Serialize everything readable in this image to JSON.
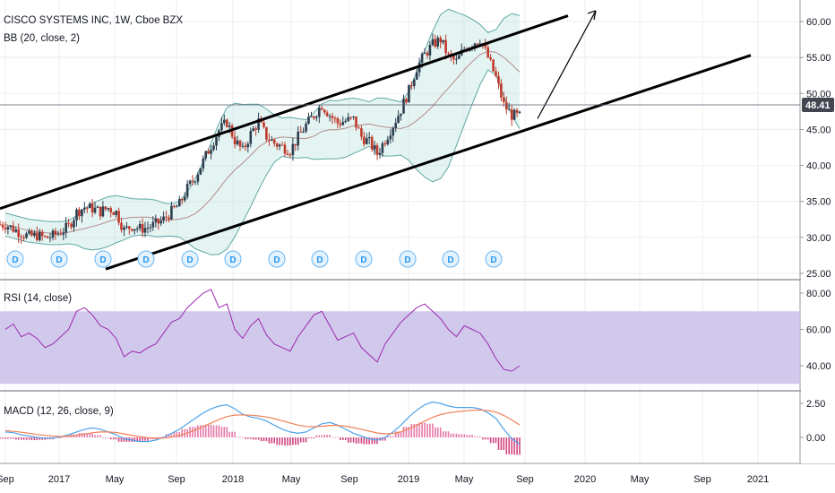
{
  "header": {
    "symbol_title": "CISCO SYSTEMS INC, 1W, Cboe BZX",
    "bb_label": "BB (20, close, 2)",
    "rsi_label": "RSI (14, close)",
    "macd_label": "MACD (12, 26, close, 9)"
  },
  "current_price": "48.41",
  "dividend_marker_text": "D",
  "chart_data": [
    {
      "type": "candlestick",
      "name": "price",
      "y_axis_ticks": [
        "60.00",
        "55.00",
        "50.00",
        "45.00",
        "40.00",
        "35.00",
        "30.00",
        "25.00"
      ],
      "ylim": [
        25,
        62
      ],
      "x_ticks": [
        "Sep",
        "2017",
        "May",
        "Sep",
        "2018",
        "May",
        "Sep",
        "2019",
        "May",
        "Sep",
        "2020",
        "May",
        "Sep",
        "2021"
      ],
      "close_path": [
        31.8,
        31.2,
        30.6,
        30.1,
        30.3,
        29.9,
        30.2,
        30.8,
        31.5,
        33.5,
        34.2,
        34.0,
        33.6,
        34.1,
        33.5,
        31.0,
        31.6,
        31.2,
        31.4,
        31.8,
        32.5,
        33.6,
        34.6,
        36.8,
        38.4,
        40.6,
        42.8,
        44.9,
        46.0,
        43.5,
        42.0,
        44.4,
        46.1,
        44.0,
        43.1,
        42.6,
        42.1,
        43.9,
        45.6,
        47.0,
        48.4,
        47.0,
        45.9,
        46.2,
        46.4,
        44.0,
        43.2,
        41.6,
        43.6,
        45.6,
        47.8,
        50.4,
        53.6,
        55.4,
        56.8,
        57.5,
        55.1,
        54.4,
        56.2,
        57.0,
        57.6,
        55.0,
        52.2,
        48.4,
        47.0,
        46.8
      ],
      "trend_channel_upper": {
        "from": [
          "2016-09",
          33.0
        ],
        "to": [
          "2019-12",
          62.0
        ]
      },
      "trend_channel_lower": {
        "from": [
          "2017-05",
          27.0
        ],
        "to": [
          "2020-12",
          56.0
        ]
      },
      "projection_arrow": {
        "from": 46.5,
        "to": 61.0
      }
    },
    {
      "type": "line",
      "name": "RSI",
      "y_axis_ticks": [
        "80.00",
        "60.00",
        "40.00"
      ],
      "band": [
        30,
        70
      ],
      "values": [
        60,
        63,
        56,
        58,
        55,
        50,
        52,
        56,
        60,
        70,
        72,
        68,
        62,
        60,
        55,
        45,
        48,
        47,
        50,
        52,
        58,
        64,
        66,
        72,
        76,
        80,
        82,
        72,
        74,
        60,
        55,
        62,
        66,
        57,
        52,
        50,
        48,
        56,
        62,
        68,
        70,
        62,
        54,
        56,
        58,
        50,
        46,
        42,
        52,
        58,
        64,
        68,
        72,
        74,
        70,
        66,
        60,
        56,
        62,
        60,
        58,
        52,
        44,
        38,
        37,
        40
      ]
    },
    {
      "type": "macd",
      "name": "MACD",
      "y_axis_ticks": [
        "2.50",
        "0.00"
      ],
      "macd": [
        0.4,
        0.35,
        0.2,
        0.1,
        0.0,
        -0.05,
        -0.05,
        0.05,
        0.2,
        0.4,
        0.6,
        0.7,
        0.6,
        0.4,
        0.2,
        -0.1,
        -0.2,
        -0.3,
        -0.3,
        -0.2,
        0.0,
        0.3,
        0.6,
        1.0,
        1.4,
        1.8,
        2.1,
        2.3,
        2.4,
        2.1,
        1.7,
        1.5,
        1.4,
        1.2,
        0.9,
        0.6,
        0.4,
        0.3,
        0.4,
        0.7,
        1.0,
        1.1,
        0.9,
        0.6,
        0.3,
        0.1,
        -0.1,
        -0.2,
        0.0,
        0.4,
        0.9,
        1.5,
        2.0,
        2.4,
        2.6,
        2.5,
        2.3,
        2.2,
        2.2,
        2.2,
        2.1,
        1.8,
        1.4,
        0.6,
        -0.1,
        -0.5
      ],
      "signal": [
        0.5,
        0.45,
        0.38,
        0.3,
        0.22,
        0.15,
        0.1,
        0.08,
        0.1,
        0.16,
        0.25,
        0.34,
        0.4,
        0.4,
        0.36,
        0.26,
        0.16,
        0.06,
        -0.02,
        -0.06,
        -0.05,
        0.02,
        0.14,
        0.32,
        0.54,
        0.8,
        1.06,
        1.31,
        1.53,
        1.64,
        1.66,
        1.63,
        1.58,
        1.5,
        1.38,
        1.22,
        1.06,
        0.9,
        0.8,
        0.78,
        0.82,
        0.88,
        0.88,
        0.82,
        0.72,
        0.6,
        0.46,
        0.33,
        0.26,
        0.29,
        0.41,
        0.63,
        0.9,
        1.2,
        1.48,
        1.68,
        1.8,
        1.88,
        1.94,
        1.99,
        2.01,
        1.97,
        1.86,
        1.62,
        1.28,
        0.92
      ]
    }
  ]
}
